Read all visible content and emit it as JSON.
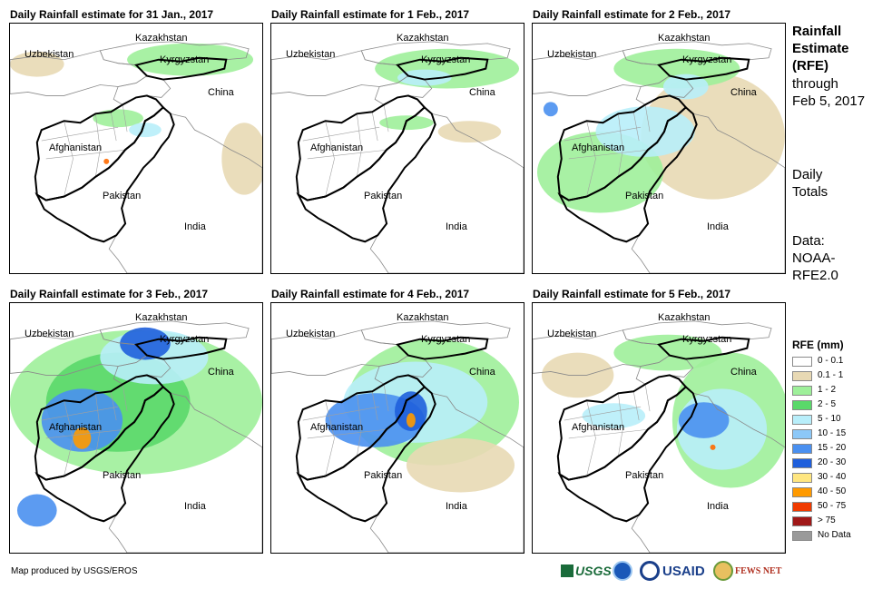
{
  "panels": [
    {
      "title": "Daily Rainfall estimate for 31 Jan., 2017",
      "rain": [
        {
          "c": "#9ef09a",
          "cx": 200,
          "cy": 40,
          "rx": 70,
          "ry": 18
        },
        {
          "c": "#9ef09a",
          "cx": 120,
          "cy": 105,
          "rx": 28,
          "ry": 10
        },
        {
          "c": "#e8d9b4",
          "cx": 260,
          "cy": 150,
          "rx": 25,
          "ry": 40
        },
        {
          "c": "#e8d9b4",
          "cx": 30,
          "cy": 45,
          "rx": 30,
          "ry": 14
        },
        {
          "c": "#b8eefa",
          "cx": 150,
          "cy": 118,
          "rx": 18,
          "ry": 8
        },
        {
          "c": "#ff6a00",
          "cx": 107,
          "cy": 153,
          "rx": 3,
          "ry": 3
        }
      ]
    },
    {
      "title": "Daily Rainfall estimate for 1 Feb., 2017",
      "rain": [
        {
          "c": "#9ef09a",
          "cx": 195,
          "cy": 50,
          "rx": 80,
          "ry": 22
        },
        {
          "c": "#b8eefa",
          "cx": 170,
          "cy": 60,
          "rx": 30,
          "ry": 9
        },
        {
          "c": "#e8d9b4",
          "cx": 220,
          "cy": 120,
          "rx": 35,
          "ry": 12
        },
        {
          "c": "#9ef09a",
          "cx": 150,
          "cy": 110,
          "rx": 30,
          "ry": 8
        }
      ]
    },
    {
      "title": "Daily Rainfall estimate for 2 Feb., 2017",
      "rain": [
        {
          "c": "#e8d9b4",
          "cx": 200,
          "cy": 125,
          "rx": 80,
          "ry": 70
        },
        {
          "c": "#9ef09a",
          "cx": 75,
          "cy": 165,
          "rx": 70,
          "ry": 45
        },
        {
          "c": "#9ef09a",
          "cx": 160,
          "cy": 50,
          "rx": 70,
          "ry": 22
        },
        {
          "c": "#b8eefa",
          "cx": 125,
          "cy": 120,
          "rx": 55,
          "ry": 28
        },
        {
          "c": "#b8eefa",
          "cx": 170,
          "cy": 70,
          "rx": 25,
          "ry": 14
        },
        {
          "c": "#4a90f0",
          "cx": 20,
          "cy": 95,
          "rx": 8,
          "ry": 8
        }
      ]
    },
    {
      "title": "Daily Rainfall estimate for 3 Feb., 2017",
      "rain": [
        {
          "c": "#9ef09a",
          "cx": 140,
          "cy": 110,
          "rx": 140,
          "ry": 80
        },
        {
          "c": "#5ad86a",
          "cx": 120,
          "cy": 110,
          "rx": 80,
          "ry": 55
        },
        {
          "c": "#b8eefa",
          "cx": 160,
          "cy": 60,
          "rx": 60,
          "ry": 30
        },
        {
          "c": "#4a90f0",
          "cx": 80,
          "cy": 130,
          "rx": 45,
          "ry": 35
        },
        {
          "c": "#1f5fdc",
          "cx": 150,
          "cy": 45,
          "rx": 28,
          "ry": 18
        },
        {
          "c": "#ff9a00",
          "cx": 80,
          "cy": 150,
          "rx": 10,
          "ry": 12
        },
        {
          "c": "#4a90f0",
          "cx": 30,
          "cy": 230,
          "rx": 22,
          "ry": 18
        }
      ]
    },
    {
      "title": "Daily Rainfall estimate for 4 Feb., 2017",
      "rain": [
        {
          "c": "#9ef09a",
          "cx": 180,
          "cy": 110,
          "rx": 95,
          "ry": 70
        },
        {
          "c": "#b8eefa",
          "cx": 160,
          "cy": 110,
          "rx": 80,
          "ry": 45
        },
        {
          "c": "#4a90f0",
          "cx": 115,
          "cy": 130,
          "rx": 55,
          "ry": 30
        },
        {
          "c": "#1f5fdc",
          "cx": 155,
          "cy": 120,
          "rx": 18,
          "ry": 22
        },
        {
          "c": "#ff9a00",
          "cx": 155,
          "cy": 130,
          "rx": 5,
          "ry": 8
        },
        {
          "c": "#e8d9b4",
          "cx": 210,
          "cy": 180,
          "rx": 60,
          "ry": 30
        }
      ]
    },
    {
      "title": "Daily Rainfall estimate for 5 Feb., 2017",
      "rain": [
        {
          "c": "#9ef09a",
          "cx": 220,
          "cy": 130,
          "rx": 65,
          "ry": 75
        },
        {
          "c": "#b8eefa",
          "cx": 210,
          "cy": 140,
          "rx": 50,
          "ry": 45
        },
        {
          "c": "#4a90f0",
          "cx": 190,
          "cy": 130,
          "rx": 28,
          "ry": 20
        },
        {
          "c": "#9ef09a",
          "cx": 150,
          "cy": 55,
          "rx": 60,
          "ry": 20
        },
        {
          "c": "#b8eefa",
          "cx": 90,
          "cy": 125,
          "rx": 35,
          "ry": 14
        },
        {
          "c": "#e8d9b4",
          "cx": 50,
          "cy": 80,
          "rx": 40,
          "ry": 25
        },
        {
          "c": "#ff6a00",
          "cx": 200,
          "cy": 160,
          "rx": 3,
          "ry": 3
        }
      ]
    }
  ],
  "labels": {
    "kazakhstan": "Kazakhstan",
    "kyrgyzstan": "Kyrgyzstan",
    "uzbekistan": "Uzbekistan",
    "china": "China",
    "afghanistan": "Afghanistan",
    "pakistan": "Pakistan",
    "india": "India"
  },
  "side": {
    "title1": "Rainfall",
    "title2": "Estimate",
    "title3": "(RFE)",
    "through": "through",
    "date": "Feb 5, 2017",
    "daily1": "Daily",
    "daily2": "Totals",
    "data1": "Data:",
    "data2": "NOAA-",
    "data3": "RFE2.0"
  },
  "legend": {
    "title": "RFE (mm)",
    "items": [
      {
        "label": "0 - 0.1",
        "color": "#ffffff"
      },
      {
        "label": "0.1 - 1",
        "color": "#e8d9b4"
      },
      {
        "label": "1 - 2",
        "color": "#9ef09a"
      },
      {
        "label": "2 - 5",
        "color": "#5ad86a"
      },
      {
        "label": "5 - 10",
        "color": "#b8eefa"
      },
      {
        "label": "10 - 15",
        "color": "#8cc8f8"
      },
      {
        "label": "15 - 20",
        "color": "#4a90f0"
      },
      {
        "label": "20 - 30",
        "color": "#1f5fdc"
      },
      {
        "label": "30 - 40",
        "color": "#ffe680"
      },
      {
        "label": "40 - 50",
        "color": "#ff9a00"
      },
      {
        "label": "50 - 75",
        "color": "#f03a00"
      },
      {
        "label": "> 75",
        "color": "#a01818"
      },
      {
        "label": "No Data",
        "color": "#9a9a9a"
      }
    ]
  },
  "credit": "Map produced by USGS/EROS",
  "logos": {
    "usgs": "USGS",
    "usaid": "USAID",
    "fewsnet": "FEWS NET"
  }
}
